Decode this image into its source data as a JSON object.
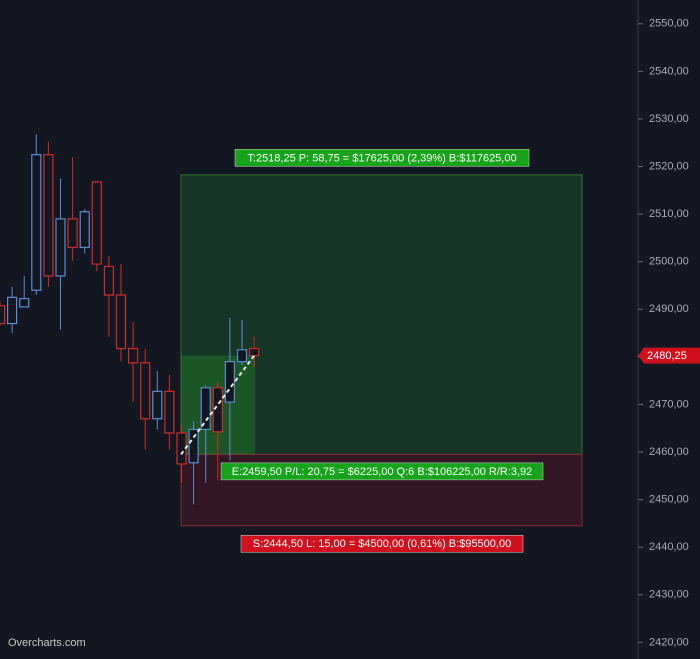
{
  "chart_data": {
    "type": "candlestick",
    "open": [
      2490.75,
      2487,
      2490.5,
      2494,
      2522.5,
      2497,
      2509,
      2503,
      2516.75,
      2499,
      2493,
      2481.75,
      2478.75,
      2467,
      2472.75,
      2464,
      2457.75,
      2464.75,
      2473.5,
      2470.5,
      2479,
      2481.75
    ],
    "high": [
      2491.5,
      2494.75,
      2497,
      2526.75,
      2525.25,
      2517.5,
      2522,
      2511,
      2516.75,
      2501.25,
      2499.5,
      2487.25,
      2481.75,
      2477,
      2476.25,
      2465.5,
      2466.5,
      2474,
      2474.75,
      2488.25,
      2487.75,
      2484.25
    ],
    "low": [
      2486.5,
      2485,
      2490.5,
      2493,
      2494.75,
      2485.75,
      2500.25,
      2501.75,
      2498,
      2484.25,
      2479,
      2470.5,
      2460.5,
      2464.75,
      2460.5,
      2453.5,
      2449,
      2453.5,
      2454,
      2458.25,
      2478.25,
      2477.75
    ],
    "close": [
      2487,
      2492.5,
      2492.25,
      2522.5,
      2497,
      2509,
      2503,
      2510.5,
      2499.5,
      2493,
      2481.75,
      2478.75,
      2467,
      2472.75,
      2464,
      2457.5,
      2464.75,
      2473.5,
      2464.25,
      2479,
      2481.5,
      2480.25
    ],
    "up_color": "#5b8bd0",
    "down_color": "#d02b2b",
    "ylim": [
      2416.5,
      2555
    ],
    "yticks": [
      {
        "value": 2420,
        "label": "2420,00"
      },
      {
        "value": 2430,
        "label": "2430,00"
      },
      {
        "value": 2440,
        "label": "2440,00"
      },
      {
        "value": 2450,
        "label": "2450,00"
      },
      {
        "value": 2460,
        "label": "2460,00"
      },
      {
        "value": 2470,
        "label": "2470,00"
      },
      {
        "value": 2480,
        "label": "2480,00"
      },
      {
        "value": 2490,
        "label": "2490,00"
      },
      {
        "value": 2500,
        "label": "2500,00"
      },
      {
        "value": 2510,
        "label": "2510,00"
      },
      {
        "value": 2520,
        "label": "2520,00"
      },
      {
        "value": 2530,
        "label": "2530,00"
      },
      {
        "value": 2540,
        "label": "2540,00"
      },
      {
        "value": 2550,
        "label": "2550,00"
      }
    ],
    "last_price": {
      "value": 2480.25,
      "label": "2480,25"
    },
    "position": {
      "target": 2518.25,
      "entry": 2459.5,
      "stop": 2444.5,
      "target_label": "T:2518,25 P: 58,75 = $17625,00 (2,39%) B:$117625,00",
      "entry_label": "E:2459,50 P/L: 20,75 = $6225,00 Q:6 B:$106225,00 R/R:3,92",
      "stop_label": "S:2444,50 L: 15,00 = $4500,00 (0,61%) B:$95500,00"
    },
    "watermark": "Overcharts.com"
  }
}
